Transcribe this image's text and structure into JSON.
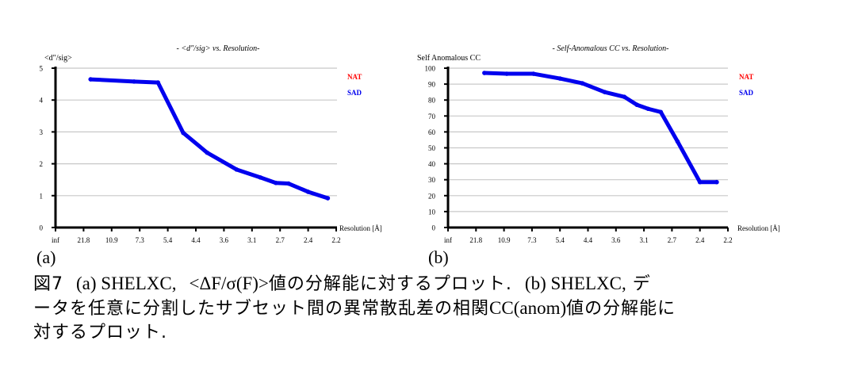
{
  "chart_data": [
    {
      "type": "line",
      "title": "- <d\"/sig> vs. Resolution-",
      "ylabel": "<d\"/sig>",
      "xlabel": "Resolution [Å]",
      "ylim": [
        0,
        5
      ],
      "yticks": [
        0,
        1,
        2,
        3,
        4,
        5
      ],
      "categories": [
        "inf",
        "21.8",
        "10.9",
        "7.3",
        "5.4",
        "4.4",
        "3.6",
        "3.1",
        "2.7",
        "2.4",
        "2.2"
      ],
      "grid": true,
      "legend_placement": "top-right",
      "legend": [
        {
          "name": "NAT",
          "color": "#ff0000"
        },
        {
          "name": "SAD",
          "color": "#0000ee"
        }
      ],
      "series": [
        {
          "name": "SAD",
          "color": "#0000ee",
          "x": [
            1.25,
            2.8,
            3.65,
            4.55,
            5.4,
            6.45,
            7.3,
            7.85,
            8.3,
            9.0,
            9.7
          ],
          "values": [
            4.65,
            4.58,
            4.55,
            2.97,
            2.35,
            1.82,
            1.57,
            1.4,
            1.38,
            1.12,
            0.92
          ]
        }
      ]
    },
    {
      "type": "line",
      "title": "- Self-Anomalous CC vs. Resolution-",
      "ylabel": "Self Anomalous CC",
      "xlabel": "Resolution [Å]",
      "ylim": [
        0,
        100
      ],
      "yticks": [
        0,
        10,
        20,
        30,
        40,
        50,
        60,
        70,
        80,
        90,
        100
      ],
      "categories": [
        "inf",
        "21.8",
        "10.9",
        "7.3",
        "5.4",
        "4.4",
        "3.6",
        "3.1",
        "2.7",
        "2.4",
        "2.2"
      ],
      "grid": true,
      "legend_placement": "top-right",
      "legend": [
        {
          "name": "NAT",
          "color": "#ff0000"
        },
        {
          "name": "SAD",
          "color": "#0000ee"
        }
      ],
      "series": [
        {
          "name": "SAD",
          "color": "#0000ee",
          "x": [
            1.3,
            2.1,
            3.05,
            4.0,
            4.8,
            5.6,
            6.3,
            6.75,
            7.15,
            7.6,
            8.2,
            9.0,
            9.6
          ],
          "values": [
            97,
            96.5,
            96.5,
            93.5,
            90.5,
            85,
            82,
            77,
            74.5,
            72.5,
            54,
            28.5,
            28.5
          ]
        }
      ]
    }
  ],
  "panel_labels": [
    "(a)",
    "(b)"
  ],
  "caption": {
    "line1_a": "図7",
    "line1_b": "(a) SHELXC,",
    "line1_c": "<ΔF/σ(F)>",
    "line1_d": "値の分解能に対するプロット.",
    "line1_e": "(b) SHELXC,",
    "line1_f": "デ",
    "line2_a": "ータを任意に分割したサブセット間の異常散乱差の相関",
    "line2_b": "CC(anom)",
    "line2_c": "値の分解能に",
    "line3": "対するプロット."
  }
}
